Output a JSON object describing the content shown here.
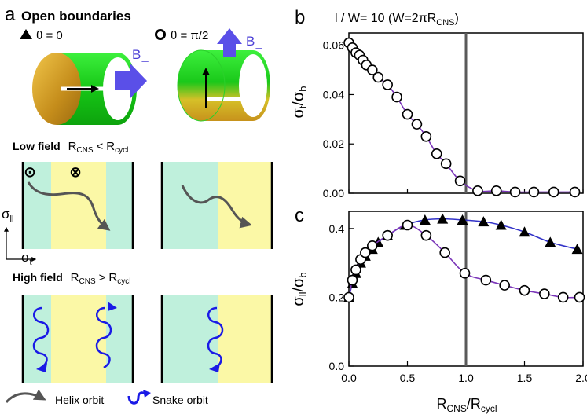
{
  "figure": {
    "panel_a": {
      "letter": "a",
      "title": "Open boundaries",
      "legend": [
        {
          "marker": "triangle-filled",
          "text": "θ = 0"
        },
        {
          "marker": "circle-open",
          "text": "θ = π/2"
        }
      ],
      "field_label": "B",
      "field_subscript": "⊥",
      "low_field": {
        "title": "Low field",
        "cond_main": "R",
        "cond_sub1": "CNS",
        "cond_op": "<",
        "cond_main2": "R",
        "cond_sub2": "cycl"
      },
      "high_field": {
        "title": "High field",
        "cond_main": "R",
        "cond_sub1": "CNS",
        "cond_op": ">",
        "cond_main2": "R",
        "cond_sub2": "cycl"
      },
      "sigma_par": {
        "main": "σ",
        "sub": "ll"
      },
      "sigma_t": {
        "main": "σ",
        "sub": "t"
      },
      "symbols": {
        "dot": "⊙",
        "cross": "⊗"
      },
      "orbits_legend": [
        {
          "icon": "helix-orbit-icon",
          "text": "Helix orbit"
        },
        {
          "icon": "snake-orbit-icon",
          "text": "Snake orbit"
        }
      ],
      "colors": {
        "cyan": "#bff0dc",
        "yellow": "#fbf8a6",
        "arrow": "#555555",
        "snake": "#1a1ae6",
        "field_arrow": "#5a4fe8",
        "tube_green": "#22dd22",
        "tube_gold": "#d9a21a"
      }
    },
    "panel_b": {
      "letter": "b",
      "title": "l / W= 10 (W=2πR",
      "title_sub": "CNS",
      "title_end": ")",
      "ylabel_main": "σ",
      "ylabel_sub1": "t",
      "ylabel_sep": "/σ",
      "ylabel_sub2": "b"
    },
    "panel_c": {
      "letter": "c",
      "ylabel_main": "σ",
      "ylabel_sub1": "ll",
      "ylabel_sep": "/σ",
      "ylabel_sub2": "b",
      "xlabel_main": "R",
      "xlabel_sub1": "CNS",
      "xlabel_sep": "/R",
      "xlabel_sub2": "cycl"
    }
  },
  "chart_data": [
    {
      "type": "line",
      "panel": "b",
      "xlim": [
        0,
        2.0
      ],
      "ylim": [
        0,
        0.065
      ],
      "xticks": [
        "0.0",
        "0.5",
        "1.0",
        "1.5",
        "2.0"
      ],
      "yticks": [
        "0.00",
        "0.02",
        "0.04",
        "0.06"
      ],
      "vline_x": 1.0,
      "line_color": "#7a35b8",
      "series": [
        {
          "marker": "circle-open",
          "line_color": "#7a35b8",
          "x": [
            0,
            0.03,
            0.06,
            0.09,
            0.12,
            0.15,
            0.2,
            0.25,
            0.33,
            0.41,
            0.5,
            0.58,
            0.66,
            0.75,
            0.83,
            0.95,
            1.1,
            1.26,
            1.42,
            1.58,
            1.75,
            1.93
          ],
          "y": [
            0.061,
            0.059,
            0.057,
            0.056,
            0.054,
            0.052,
            0.05,
            0.047,
            0.044,
            0.039,
            0.032,
            0.028,
            0.023,
            0.016,
            0.012,
            0.005,
            0.001,
            0.001,
            0.0005,
            0.0005,
            0.0005,
            0.0005
          ]
        }
      ]
    },
    {
      "type": "line",
      "panel": "c",
      "xlim": [
        0,
        2.0
      ],
      "ylim": [
        0,
        0.45
      ],
      "xticks": [
        "0.0",
        "0.5",
        "1.0",
        "1.5",
        "2.0"
      ],
      "yticks": [
        "0.0",
        "0.2",
        "0.4"
      ],
      "vline_x": 1.0,
      "series": [
        {
          "marker": "triangle-filled",
          "line_color": "#3232c8",
          "x": [
            0,
            0.03,
            0.06,
            0.1,
            0.14,
            0.2,
            0.25,
            0.33,
            0.48,
            0.65,
            0.8,
            0.97,
            1.15,
            1.3,
            1.5,
            1.72,
            1.95
          ],
          "y": [
            0.2,
            0.24,
            0.27,
            0.3,
            0.32,
            0.34,
            0.36,
            0.38,
            0.41,
            0.425,
            0.428,
            0.425,
            0.42,
            0.41,
            0.39,
            0.36,
            0.34
          ]
        },
        {
          "marker": "circle-open",
          "line_color": "#7a35b8",
          "x": [
            0,
            0.03,
            0.06,
            0.1,
            0.14,
            0.2,
            0.33,
            0.5,
            0.66,
            0.82,
            0.99,
            1.17,
            1.33,
            1.5,
            1.67,
            1.83,
            1.97
          ],
          "y": [
            0.2,
            0.25,
            0.28,
            0.31,
            0.33,
            0.35,
            0.38,
            0.41,
            0.38,
            0.33,
            0.27,
            0.25,
            0.235,
            0.22,
            0.21,
            0.2,
            0.2
          ]
        }
      ]
    }
  ]
}
